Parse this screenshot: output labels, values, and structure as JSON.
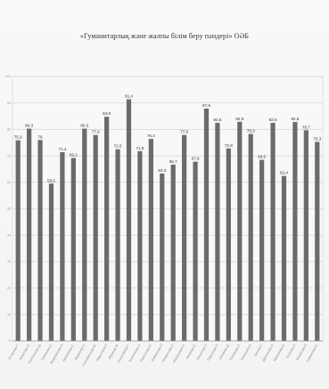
{
  "chart_data": {
    "type": "bar",
    "title": "«Гуманитарлық және жалпы білім беру пәндері» ОӘБ",
    "xlabel": "",
    "ylabel": "",
    "ylim": [
      0,
      100
    ],
    "y_ticks": [
      "0",
      "10",
      "20",
      "30",
      "40",
      "50",
      "60",
      "70",
      "80",
      "90",
      "100"
    ],
    "grid": true,
    "legend": "none",
    "bar_color": "#6b6b6b",
    "categories": [
      "Оспанова Г.",
      "Ахметова А.",
      "Сейтжанова Д.",
      "Ермекова Б.",
      "Жумабекова А.",
      "Карибаева С.",
      "Мұратова Л.",
      "Сулейменова Ж.",
      "Абдуллина Р.",
      "Ибраева М.",
      "Кенжебаева Г.",
      "Тулегенова А.",
      "Смагулова Н.",
      "Байжанова Р.",
      "Исмаилова К.",
      "Нургалиева А.",
      "Амирова С.",
      "Жакупова Т.",
      "Садыкова Н.",
      "Омарова Д.",
      "Рахимова Л.",
      "Ташенова А.",
      "Бекова Г.",
      "Дауленова А.",
      "Мамырова Б.",
      "Есенова З.",
      "Жанасова Р.",
      "Курманова С."
    ],
    "value_labels": [
      "75,9",
      "80,3",
      "76",
      "59,5",
      "71,4",
      "69,2",
      "80,3",
      "77,9",
      "84,8",
      "72,5",
      "91,4",
      "71,8",
      "76,4",
      "63,3",
      "66,7",
      "77,9",
      "67,8",
      "87,9",
      "82,5",
      "72,8",
      "82,9",
      "78,3",
      "68,5",
      "82,5",
      "62,4",
      "82,8",
      "79,7",
      "75,3"
    ],
    "values": [
      75.9,
      80.3,
      76,
      59.5,
      71.4,
      69.2,
      80.3,
      77.9,
      84.8,
      72.5,
      91.4,
      71.8,
      76.4,
      63.3,
      66.7,
      77.9,
      67.8,
      87.9,
      82.5,
      72.8,
      82.9,
      78.3,
      68.5,
      82.5,
      62.4,
      82.8,
      79.7,
      75.3
    ]
  }
}
